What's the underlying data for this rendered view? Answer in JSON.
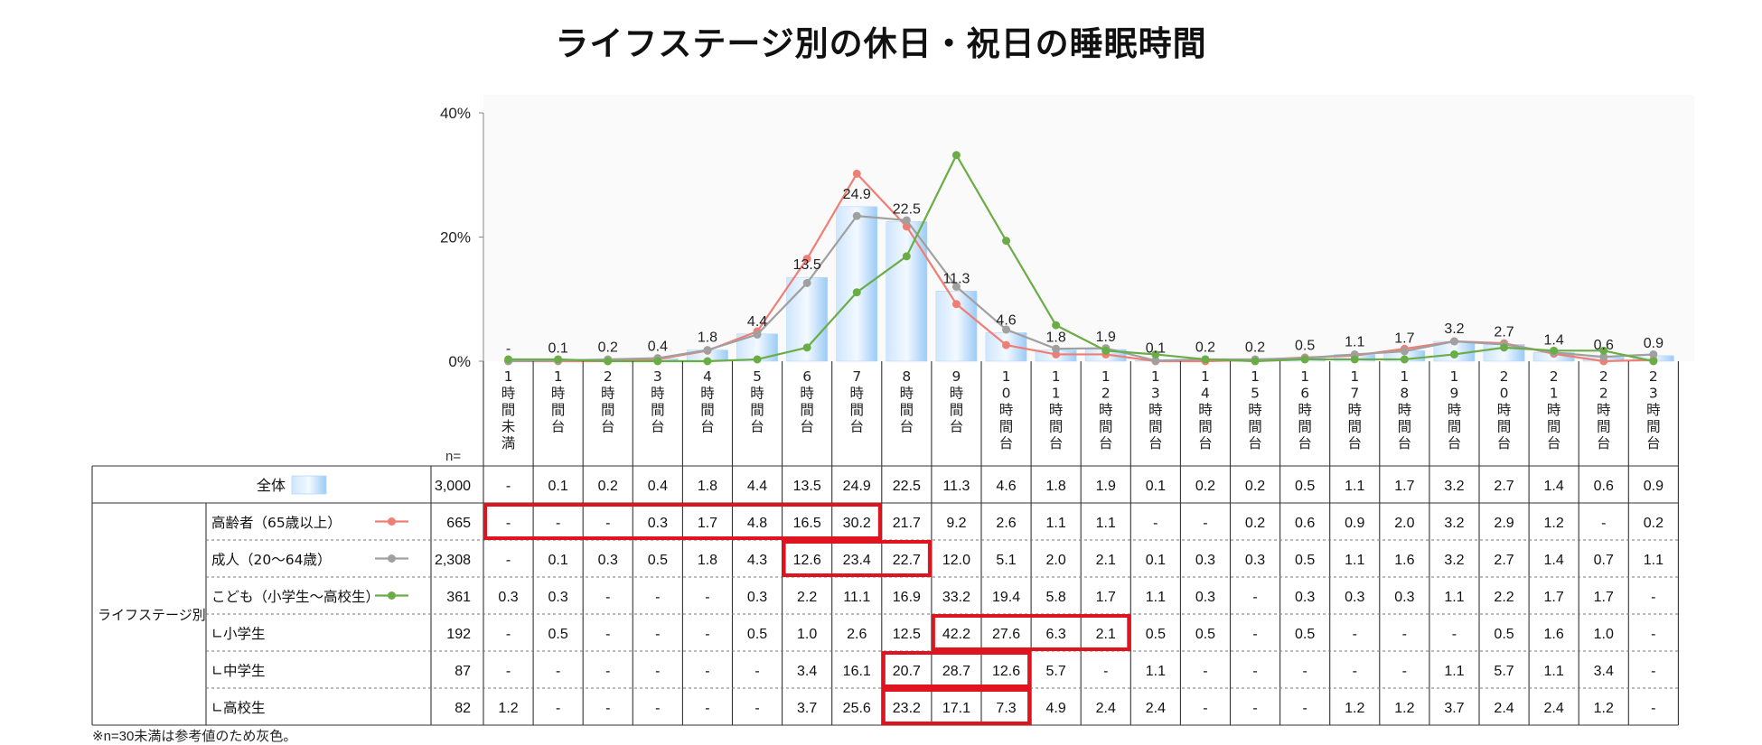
{
  "chart_data": {
    "type": "bar",
    "title": "ライフステージ別の休日・祝日の睡眠時間",
    "categories": [
      "1時間未満",
      "1時間台",
      "2時間台",
      "3時間台",
      "4時間台",
      "5時間台",
      "6時間台",
      "7時間台",
      "8時間台",
      "9時間台",
      "10時間台",
      "11時間台",
      "12時間台",
      "13時間台",
      "14時間台",
      "15時間台",
      "16時間台",
      "17時間台",
      "18時間台",
      "19時間台",
      "20時間台",
      "21時間台",
      "22時間台",
      "23時間台"
    ],
    "category_labels": [
      [
        "1",
        "時",
        "間",
        "未",
        "満"
      ],
      [
        "1",
        "時",
        "間",
        "台"
      ],
      [
        "2",
        "時",
        "間",
        "台"
      ],
      [
        "3",
        "時",
        "間",
        "台"
      ],
      [
        "4",
        "時",
        "間",
        "台"
      ],
      [
        "5",
        "時",
        "間",
        "台"
      ],
      [
        "6",
        "時",
        "間",
        "台"
      ],
      [
        "7",
        "時",
        "間",
        "台"
      ],
      [
        "8",
        "時",
        "間",
        "台"
      ],
      [
        "9",
        "時",
        "間",
        "台"
      ],
      [
        "1",
        "0",
        "時",
        "間",
        "台"
      ],
      [
        "1",
        "1",
        "時",
        "間",
        "台"
      ],
      [
        "1",
        "2",
        "時",
        "間",
        "台"
      ],
      [
        "1",
        "3",
        "時",
        "間",
        "台"
      ],
      [
        "1",
        "4",
        "時",
        "間",
        "台"
      ],
      [
        "1",
        "5",
        "時",
        "間",
        "台"
      ],
      [
        "1",
        "6",
        "時",
        "間",
        "台"
      ],
      [
        "1",
        "7",
        "時",
        "間",
        "台"
      ],
      [
        "1",
        "8",
        "時",
        "間",
        "台"
      ],
      [
        "1",
        "9",
        "時",
        "間",
        "台"
      ],
      [
        "2",
        "0",
        "時",
        "間",
        "台"
      ],
      [
        "2",
        "1",
        "時",
        "間",
        "台"
      ],
      [
        "2",
        "2",
        "時",
        "間",
        "台"
      ],
      [
        "2",
        "3",
        "時",
        "間",
        "台"
      ]
    ],
    "ylim": [
      0,
      40
    ],
    "yticks": [
      "0%",
      "20%",
      "40%"
    ],
    "ytick_values": [
      0,
      20,
      40
    ],
    "n_label": "n=",
    "bar_series": {
      "name": "全体",
      "n": "3,000",
      "values": [
        0,
        0.1,
        0.2,
        0.4,
        1.8,
        4.4,
        13.5,
        24.9,
        22.5,
        11.3,
        4.6,
        1.8,
        1.9,
        0.1,
        0.2,
        0.2,
        0.5,
        1.1,
        1.7,
        3.2,
        2.7,
        1.4,
        0.6,
        0.9
      ],
      "cells": [
        "-",
        "0.1",
        "0.2",
        "0.4",
        "1.8",
        "4.4",
        "13.5",
        "24.9",
        "22.5",
        "11.3",
        "4.6",
        "1.8",
        "1.9",
        "0.1",
        "0.2",
        "0.2",
        "0.5",
        "1.1",
        "1.7",
        "3.2",
        "2.7",
        "1.4",
        "0.6",
        "0.9"
      ]
    },
    "group_label": "ライフステージ別",
    "series": [
      {
        "name": "高齢者（65歳以上）",
        "n": "665",
        "color": "#ef7f75",
        "line": true,
        "values": [
          0,
          0,
          0,
          0.3,
          1.7,
          4.8,
          16.5,
          30.2,
          21.7,
          9.2,
          2.6,
          1.1,
          1.1,
          0,
          0,
          0.2,
          0.6,
          0.9,
          2.0,
          3.2,
          2.9,
          1.2,
          0,
          0.2
        ],
        "cells": [
          "-",
          "-",
          "-",
          "0.3",
          "1.7",
          "4.8",
          "16.5",
          "30.2",
          "21.7",
          "9.2",
          "2.6",
          "1.1",
          "1.1",
          "-",
          "-",
          "0.2",
          "0.6",
          "0.9",
          "2.0",
          "3.2",
          "2.9",
          "1.2",
          "-",
          "0.2"
        ]
      },
      {
        "name": "成人（20～64歳）",
        "n": "2,308",
        "color": "#a0a0a0",
        "line": true,
        "values": [
          0,
          0.1,
          0.3,
          0.5,
          1.8,
          4.3,
          12.6,
          23.4,
          22.7,
          12.0,
          5.1,
          2.0,
          2.1,
          0.1,
          0.3,
          0.3,
          0.5,
          1.1,
          1.6,
          3.2,
          2.7,
          1.4,
          0.7,
          1.1
        ],
        "cells": [
          "-",
          "0.1",
          "0.3",
          "0.5",
          "1.8",
          "4.3",
          "12.6",
          "23.4",
          "22.7",
          "12.0",
          "5.1",
          "2.0",
          "2.1",
          "0.1",
          "0.3",
          "0.3",
          "0.5",
          "1.1",
          "1.6",
          "3.2",
          "2.7",
          "1.4",
          "0.7",
          "1.1"
        ]
      },
      {
        "name": "こども（小学生～高校生）",
        "n": "361",
        "color": "#6aad46",
        "line": true,
        "values": [
          0.3,
          0.3,
          0,
          0,
          0,
          0.3,
          2.2,
          11.1,
          16.9,
          33.2,
          19.4,
          5.8,
          1.7,
          1.1,
          0.3,
          0,
          0.3,
          0.3,
          0.3,
          1.1,
          2.2,
          1.7,
          1.7,
          0
        ],
        "cells": [
          "0.3",
          "0.3",
          "-",
          "-",
          "-",
          "0.3",
          "2.2",
          "11.1",
          "16.9",
          "33.2",
          "19.4",
          "5.8",
          "1.7",
          "1.1",
          "0.3",
          "-",
          "0.3",
          "0.3",
          "0.3",
          "1.1",
          "2.2",
          "1.7",
          "1.7",
          "-"
        ]
      },
      {
        "name": "∟小学生",
        "n": "192",
        "line": false,
        "cells": [
          "-",
          "0.5",
          "-",
          "-",
          "-",
          "0.5",
          "1.0",
          "2.6",
          "12.5",
          "42.2",
          "27.6",
          "6.3",
          "2.1",
          "0.5",
          "0.5",
          "-",
          "0.5",
          "-",
          "-",
          "-",
          "0.5",
          "1.6",
          "1.0",
          "-"
        ]
      },
      {
        "name": "∟中学生",
        "n": "87",
        "line": false,
        "cells": [
          "-",
          "-",
          "-",
          "-",
          "-",
          "-",
          "3.4",
          "16.1",
          "20.7",
          "28.7",
          "12.6",
          "5.7",
          "-",
          "1.1",
          "-",
          "-",
          "-",
          "-",
          "-",
          "1.1",
          "5.7",
          "1.1",
          "3.4",
          "-"
        ]
      },
      {
        "name": "∟高校生",
        "n": "82",
        "line": false,
        "cells": [
          "1.2",
          "-",
          "-",
          "-",
          "-",
          "-",
          "3.7",
          "25.6",
          "23.2",
          "17.1",
          "7.3",
          "4.9",
          "2.4",
          "2.4",
          "-",
          "-",
          "-",
          "1.2",
          "1.2",
          "3.7",
          "2.4",
          "2.4",
          "1.2",
          "-"
        ]
      }
    ],
    "highlights": [
      {
        "row": 1,
        "from": 0,
        "to": 7
      },
      {
        "row": 2,
        "from": 6,
        "to": 8
      },
      {
        "row": 4,
        "from": 9,
        "to": 12
      },
      {
        "row": 5,
        "from": 8,
        "to": 10
      },
      {
        "row": 6,
        "from": 8,
        "to": 10
      }
    ],
    "colors": {
      "bar_light": "#e8f3ff",
      "bar_dark": "#a6d0f7",
      "highlight": "#e0141e"
    },
    "footnote": "※n=30未満は参考値のため灰色。"
  }
}
